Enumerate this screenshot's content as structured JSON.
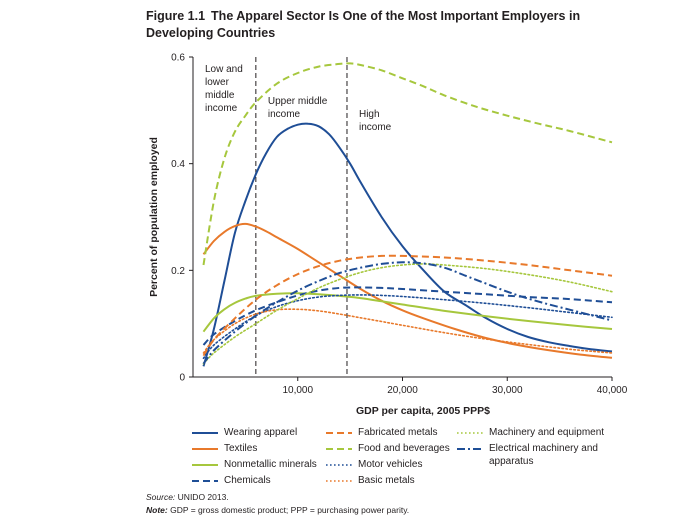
{
  "figure": {
    "number": "Figure 1.1",
    "title_line1": "The Apparel Sector Is One of the Most Important Employers in",
    "title_line2": "Developing Countries"
  },
  "footer": {
    "source_label": "Source:",
    "source_text": "UNIDO 2013.",
    "note_label": "Note:",
    "note_text": "GDP = gross domestic product; PPP = purchasing power parity."
  },
  "chart_data": {
    "type": "line",
    "xlabel": "GDP per capita, 2005 PPP$",
    "ylabel": "Percent of population employed",
    "xlim": [
      0,
      40000
    ],
    "ylim": [
      0,
      0.6
    ],
    "x_ticks": [
      10000,
      20000,
      30000,
      40000
    ],
    "x_tick_labels": [
      "10,000",
      "20,000",
      "30,000",
      "40,000"
    ],
    "y_ticks": [
      0,
      0.2,
      0.4,
      0.6
    ],
    "y_tick_labels": [
      "0",
      "0.2",
      "0.4",
      "0.6"
    ],
    "income_bands": [
      {
        "label_lines": [
          "Low and",
          "lower",
          "middle",
          "income"
        ]
      },
      {
        "boundary_x": 6000,
        "label_lines": [
          "Upper middle",
          "income"
        ]
      },
      {
        "boundary_x": 14700,
        "label_lines": [
          "High",
          "income"
        ]
      }
    ],
    "legend_layout": "below",
    "series": [
      {
        "name": "Wearing apparel",
        "color": "#1f4e96",
        "dash": "solid",
        "x": [
          1000,
          2000,
          3000,
          4000,
          5000,
          6000,
          7000,
          8000,
          9000,
          10000,
          11000,
          12000,
          13000,
          14000,
          15000,
          16000,
          18000,
          20000,
          22000,
          24000,
          26000,
          28000,
          30000,
          32000,
          34000,
          36000,
          38000,
          40000
        ],
        "y": [
          0.02,
          0.09,
          0.18,
          0.27,
          0.33,
          0.38,
          0.42,
          0.45,
          0.465,
          0.473,
          0.475,
          0.47,
          0.455,
          0.43,
          0.4,
          0.365,
          0.3,
          0.245,
          0.2,
          0.16,
          0.135,
          0.11,
          0.09,
          0.075,
          0.065,
          0.058,
          0.052,
          0.048
        ]
      },
      {
        "name": "Textiles",
        "color": "#e8792b",
        "dash": "solid",
        "x": [
          1000,
          2000,
          3000,
          4000,
          5000,
          6000,
          7000,
          8000,
          10000,
          12000,
          14000,
          16000,
          18000,
          20000,
          22000,
          25000,
          28000,
          31000,
          34000,
          37000,
          40000
        ],
        "y": [
          0.23,
          0.255,
          0.272,
          0.283,
          0.287,
          0.282,
          0.273,
          0.262,
          0.24,
          0.215,
          0.19,
          0.165,
          0.143,
          0.125,
          0.11,
          0.09,
          0.073,
          0.06,
          0.05,
          0.042,
          0.036
        ]
      },
      {
        "name": "Nonmetallic minerals",
        "color": "#a6c73d",
        "dash": "solid",
        "x": [
          1000,
          2000,
          3000,
          4000,
          5000,
          6000,
          8000,
          10000,
          12000,
          14000,
          16000,
          18000,
          20000,
          24000,
          28000,
          32000,
          36000,
          40000
        ],
        "y": [
          0.085,
          0.11,
          0.127,
          0.139,
          0.147,
          0.152,
          0.156,
          0.157,
          0.155,
          0.152,
          0.148,
          0.142,
          0.136,
          0.124,
          0.114,
          0.105,
          0.097,
          0.09
        ]
      },
      {
        "name": "Chemicals",
        "color": "#1f4e96",
        "dash": "dash",
        "x": [
          1000,
          2000,
          4000,
          6000,
          8000,
          10000,
          12000,
          14000,
          16000,
          18000,
          20000,
          24000,
          28000,
          32000,
          36000,
          40000
        ],
        "y": [
          0.06,
          0.08,
          0.105,
          0.125,
          0.14,
          0.153,
          0.162,
          0.167,
          0.168,
          0.167,
          0.165,
          0.16,
          0.155,
          0.15,
          0.146,
          0.14
        ]
      },
      {
        "name": "Fabricated metals",
        "color": "#e8792b",
        "dash": "dash",
        "x": [
          1000,
          2000,
          4000,
          6000,
          8000,
          10000,
          12000,
          14000,
          16000,
          18000,
          20000,
          24000,
          28000,
          32000,
          36000,
          40000
        ],
        "y": [
          0.04,
          0.07,
          0.11,
          0.145,
          0.172,
          0.193,
          0.208,
          0.218,
          0.224,
          0.227,
          0.227,
          0.224,
          0.218,
          0.21,
          0.2,
          0.19
        ]
      },
      {
        "name": "Food and beverages",
        "color": "#a6c73d",
        "dash": "dash",
        "x": [
          1000,
          2000,
          3000,
          4000,
          5000,
          6000,
          8000,
          10000,
          12000,
          14000,
          15000,
          16000,
          18000,
          20000,
          22000,
          24000,
          27000,
          30000,
          33000,
          36000,
          40000
        ],
        "y": [
          0.21,
          0.33,
          0.41,
          0.46,
          0.49,
          0.515,
          0.55,
          0.57,
          0.582,
          0.587,
          0.588,
          0.585,
          0.575,
          0.56,
          0.545,
          0.528,
          0.507,
          0.49,
          0.475,
          0.461,
          0.44
        ]
      },
      {
        "name": "Motor vehicles",
        "color": "#1f4e96",
        "dash": "dot",
        "x": [
          1000,
          2000,
          4000,
          6000,
          8000,
          10000,
          12000,
          14000,
          16000,
          18000,
          20000,
          24000,
          28000,
          32000,
          36000,
          40000
        ],
        "y": [
          0.035,
          0.06,
          0.09,
          0.115,
          0.132,
          0.143,
          0.15,
          0.153,
          0.154,
          0.153,
          0.151,
          0.145,
          0.138,
          0.13,
          0.121,
          0.112
        ]
      },
      {
        "name": "Basic metals",
        "color": "#e8792b",
        "dash": "dot",
        "x": [
          1000,
          2000,
          4000,
          6000,
          8000,
          10000,
          12000,
          14000,
          16000,
          18000,
          20000,
          24000,
          28000,
          32000,
          36000,
          40000
        ],
        "y": [
          0.045,
          0.07,
          0.1,
          0.118,
          0.126,
          0.127,
          0.124,
          0.118,
          0.111,
          0.104,
          0.097,
          0.083,
          0.071,
          0.061,
          0.052,
          0.045
        ]
      },
      {
        "name": "Machinery and equipment",
        "color": "#a6c73d",
        "dash": "dot",
        "x": [
          1000,
          2000,
          4000,
          6000,
          8000,
          10000,
          12000,
          14000,
          16000,
          18000,
          20000,
          22000,
          24000,
          28000,
          32000,
          36000,
          40000
        ],
        "y": [
          0.025,
          0.045,
          0.075,
          0.1,
          0.125,
          0.147,
          0.167,
          0.183,
          0.196,
          0.205,
          0.21,
          0.212,
          0.21,
          0.203,
          0.192,
          0.178,
          0.16
        ]
      },
      {
        "name": "Electrical machinery and apparatus",
        "color": "#1f4e96",
        "dash": "dashdot",
        "x": [
          1000,
          2000,
          4000,
          6000,
          8000,
          10000,
          12000,
          14000,
          16000,
          18000,
          20000,
          22000,
          24000,
          26000,
          28000,
          30000,
          32000,
          34000,
          36000,
          38000,
          40000
        ],
        "y": [
          0.025,
          0.05,
          0.085,
          0.115,
          0.14,
          0.162,
          0.18,
          0.195,
          0.205,
          0.212,
          0.215,
          0.213,
          0.205,
          0.19,
          0.175,
          0.16,
          0.147,
          0.136,
          0.126,
          0.116,
          0.106
        ]
      }
    ]
  }
}
